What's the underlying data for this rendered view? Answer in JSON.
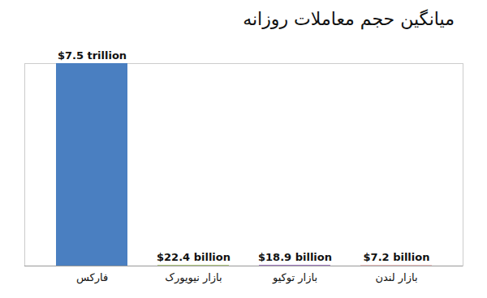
{
  "chart_data": {
    "type": "bar",
    "title": "میانگین حجم معاملات روزانه",
    "categories": [
      "فارکس",
      "بازار نیویورک",
      "بازار توکیو",
      "بازار لندن"
    ],
    "values": [
      7500,
      22.4,
      18.9,
      7.2
    ],
    "value_labels": [
      "$7.5 trillion",
      "$22.4 billion",
      "$18.9 billion",
      "$7.2 billion"
    ],
    "colors": [
      "#4a7fc1",
      "#9bbb59",
      "#7030a0",
      "#c00000"
    ],
    "ylim": [
      0,
      7500
    ],
    "data_labels": true,
    "tick_labels": "x"
  }
}
